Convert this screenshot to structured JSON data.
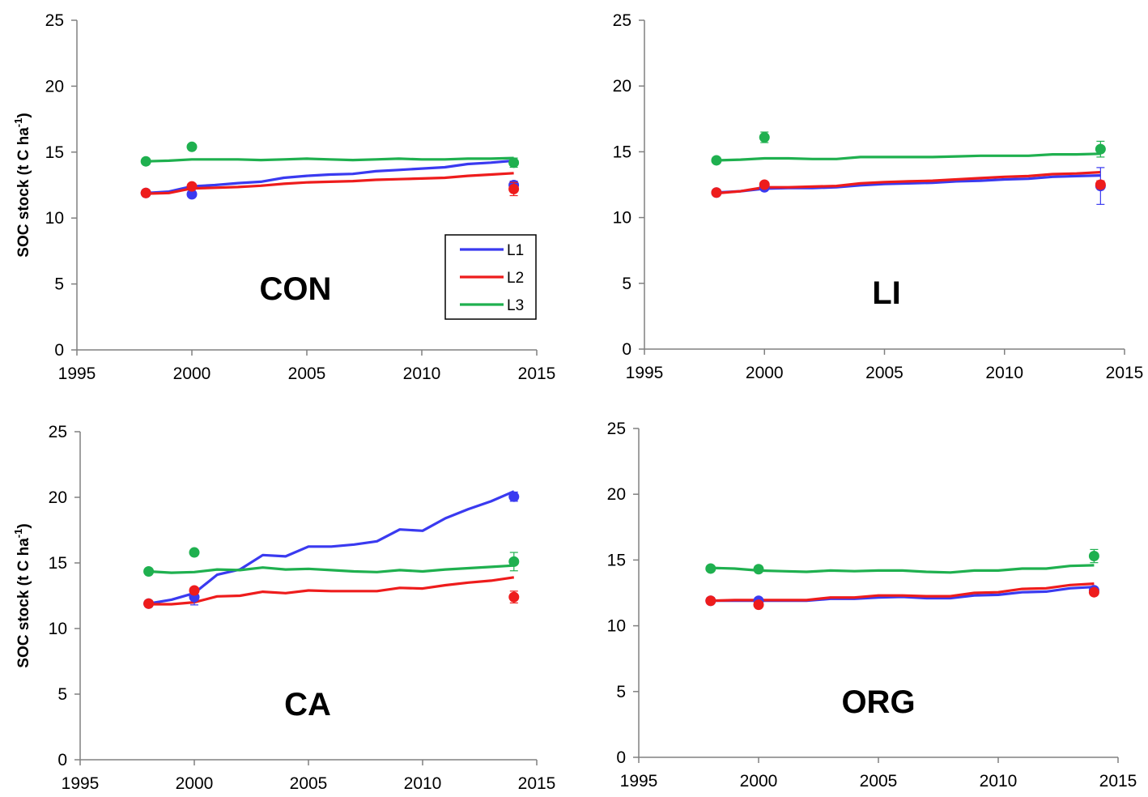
{
  "colors": {
    "L1": "#3a3af0",
    "L2": "#ee1c1c",
    "L3": "#1fb04f",
    "axis": "#808080",
    "legend_border": "#000000"
  },
  "chart_data": [
    {
      "type": "line",
      "title": "CON",
      "ylabel": "SOC stock (t C ha⁻¹)",
      "xlim": [
        1995,
        2015
      ],
      "ylim": [
        0,
        25
      ],
      "xticks": [
        1995,
        2000,
        2005,
        2010,
        2015
      ],
      "yticks": [
        0,
        5,
        10,
        15,
        20,
        25
      ],
      "legend": {
        "position": "bottom-right",
        "entries": [
          "L1",
          "L2",
          "L3"
        ]
      },
      "series": [
        {
          "name": "L1",
          "x": [
            1998,
            1999,
            2000,
            2001,
            2002,
            2003,
            2004,
            2005,
            2006,
            2007,
            2008,
            2009,
            2010,
            2011,
            2012,
            2013,
            2014
          ],
          "values": [
            11.9,
            12.0,
            12.4,
            12.5,
            12.65,
            12.75,
            13.05,
            13.2,
            13.3,
            13.35,
            13.55,
            13.65,
            13.75,
            13.85,
            14.1,
            14.2,
            14.35
          ]
        },
        {
          "name": "L2",
          "x": [
            1998,
            1999,
            2000,
            2001,
            2002,
            2003,
            2004,
            2005,
            2006,
            2007,
            2008,
            2009,
            2010,
            2011,
            2012,
            2013,
            2014
          ],
          "values": [
            11.85,
            11.9,
            12.25,
            12.3,
            12.35,
            12.45,
            12.6,
            12.7,
            12.75,
            12.8,
            12.9,
            12.95,
            13.0,
            13.05,
            13.2,
            13.3,
            13.4
          ]
        },
        {
          "name": "L3",
          "x": [
            1998,
            1999,
            2000,
            2001,
            2002,
            2003,
            2004,
            2005,
            2006,
            2007,
            2008,
            2009,
            2010,
            2011,
            2012,
            2013,
            2014
          ],
          "values": [
            14.3,
            14.35,
            14.45,
            14.45,
            14.45,
            14.4,
            14.45,
            14.5,
            14.45,
            14.4,
            14.45,
            14.5,
            14.45,
            14.45,
            14.5,
            14.5,
            14.55
          ]
        }
      ],
      "observations": [
        {
          "series": "L1",
          "x": 1998,
          "y": 11.9,
          "err": 0.2
        },
        {
          "series": "L1",
          "x": 2000,
          "y": 11.8,
          "err": 0
        },
        {
          "series": "L1",
          "x": 2014,
          "y": 12.5,
          "err": 0.3
        },
        {
          "series": "L2",
          "x": 1998,
          "y": 11.9,
          "err": 0.2
        },
        {
          "series": "L2",
          "x": 2000,
          "y": 12.4,
          "err": 0
        },
        {
          "series": "L2",
          "x": 2014,
          "y": 12.2,
          "err": 0.5
        },
        {
          "series": "L3",
          "x": 1998,
          "y": 14.3,
          "err": 0.15
        },
        {
          "series": "L3",
          "x": 2000,
          "y": 15.4,
          "err": 0
        },
        {
          "series": "L3",
          "x": 2014,
          "y": 14.2,
          "err": 0.35
        }
      ]
    },
    {
      "type": "line",
      "title": "LI",
      "ylabel": "",
      "xlim": [
        1995,
        2015
      ],
      "ylim": [
        0,
        25
      ],
      "xticks": [
        1995,
        2000,
        2005,
        2010,
        2015
      ],
      "yticks": [
        0,
        5,
        10,
        15,
        20,
        25
      ],
      "series": [
        {
          "name": "L1",
          "x": [
            1998,
            1999,
            2000,
            2001,
            2002,
            2003,
            2004,
            2005,
            2006,
            2007,
            2008,
            2009,
            2010,
            2011,
            2012,
            2013,
            2014
          ],
          "values": [
            11.9,
            12.0,
            12.2,
            12.25,
            12.25,
            12.3,
            12.45,
            12.55,
            12.6,
            12.65,
            12.75,
            12.8,
            12.9,
            12.95,
            13.1,
            13.15,
            13.2
          ]
        },
        {
          "name": "L2",
          "x": [
            1998,
            1999,
            2000,
            2001,
            2002,
            2003,
            2004,
            2005,
            2006,
            2007,
            2008,
            2009,
            2010,
            2011,
            2012,
            2013,
            2014
          ],
          "values": [
            11.85,
            12.0,
            12.3,
            12.3,
            12.35,
            12.4,
            12.6,
            12.7,
            12.75,
            12.8,
            12.9,
            13.0,
            13.1,
            13.15,
            13.3,
            13.35,
            13.45
          ]
        },
        {
          "name": "L3",
          "x": [
            1998,
            1999,
            2000,
            2001,
            2002,
            2003,
            2004,
            2005,
            2006,
            2007,
            2008,
            2009,
            2010,
            2011,
            2012,
            2013,
            2014
          ],
          "values": [
            14.35,
            14.4,
            14.5,
            14.5,
            14.45,
            14.45,
            14.6,
            14.6,
            14.6,
            14.6,
            14.65,
            14.7,
            14.7,
            14.7,
            14.8,
            14.8,
            14.85
          ]
        }
      ],
      "observations": [
        {
          "series": "L1",
          "x": 1998,
          "y": 11.9,
          "err": 0.2
        },
        {
          "series": "L1",
          "x": 2000,
          "y": 12.3,
          "err": 0
        },
        {
          "series": "L1",
          "x": 2014,
          "y": 12.4,
          "err": 1.4
        },
        {
          "series": "L2",
          "x": 1998,
          "y": 11.9,
          "err": 0.2
        },
        {
          "series": "L2",
          "x": 2000,
          "y": 12.5,
          "err": 0.2
        },
        {
          "series": "L2",
          "x": 2014,
          "y": 12.5,
          "err": 0.3
        },
        {
          "series": "L3",
          "x": 1998,
          "y": 14.35,
          "err": 0.15
        },
        {
          "series": "L3",
          "x": 2000,
          "y": 16.1,
          "err": 0.4
        },
        {
          "series": "L3",
          "x": 2014,
          "y": 15.2,
          "err": 0.6
        }
      ]
    },
    {
      "type": "line",
      "title": "CA",
      "ylabel": "SOC stock (t C ha⁻¹)",
      "xlim": [
        1995,
        2015
      ],
      "ylim": [
        0,
        25
      ],
      "xticks": [
        1995,
        2000,
        2005,
        2010,
        2015
      ],
      "yticks": [
        0,
        5,
        10,
        15,
        20,
        25
      ],
      "series": [
        {
          "name": "L1",
          "x": [
            1998,
            1999,
            2000,
            2001,
            2002,
            2003,
            2004,
            2005,
            2006,
            2007,
            2008,
            2009,
            2010,
            2011,
            2012,
            2013,
            2014
          ],
          "values": [
            11.9,
            12.2,
            12.7,
            14.1,
            14.5,
            15.6,
            15.5,
            16.25,
            16.25,
            16.4,
            16.65,
            17.55,
            17.45,
            18.4,
            19.1,
            19.7,
            20.45
          ]
        },
        {
          "name": "L2",
          "x": [
            1998,
            1999,
            2000,
            2001,
            2002,
            2003,
            2004,
            2005,
            2006,
            2007,
            2008,
            2009,
            2010,
            2011,
            2012,
            2013,
            2014
          ],
          "values": [
            11.85,
            11.85,
            12.0,
            12.45,
            12.5,
            12.8,
            12.7,
            12.9,
            12.85,
            12.85,
            12.85,
            13.1,
            13.05,
            13.3,
            13.5,
            13.65,
            13.9
          ]
        },
        {
          "name": "L3",
          "x": [
            1998,
            1999,
            2000,
            2001,
            2002,
            2003,
            2004,
            2005,
            2006,
            2007,
            2008,
            2009,
            2010,
            2011,
            2012,
            2013,
            2014
          ],
          "values": [
            14.35,
            14.25,
            14.3,
            14.5,
            14.45,
            14.65,
            14.5,
            14.55,
            14.45,
            14.35,
            14.3,
            14.45,
            14.35,
            14.5,
            14.6,
            14.7,
            14.8
          ]
        }
      ],
      "observations": [
        {
          "series": "L1",
          "x": 1998,
          "y": 11.9,
          "err": 0.2
        },
        {
          "series": "L1",
          "x": 2000,
          "y": 12.4,
          "err": 0.6
        },
        {
          "series": "L1",
          "x": 2014,
          "y": 20.05,
          "err": 0.35
        },
        {
          "series": "L2",
          "x": 1998,
          "y": 11.9,
          "err": 0.2
        },
        {
          "series": "L2",
          "x": 2000,
          "y": 12.9,
          "err": 0.2
        },
        {
          "series": "L2",
          "x": 2014,
          "y": 12.4,
          "err": 0.45
        },
        {
          "series": "L3",
          "x": 1998,
          "y": 14.35,
          "err": 0.15
        },
        {
          "series": "L3",
          "x": 2000,
          "y": 15.8,
          "err": 0.15
        },
        {
          "series": "L3",
          "x": 2014,
          "y": 15.1,
          "err": 0.7
        }
      ]
    },
    {
      "type": "line",
      "title": "ORG",
      "ylabel": "",
      "xlim": [
        1995,
        2015
      ],
      "ylim": [
        0,
        25
      ],
      "xticks": [
        1995,
        2000,
        2005,
        2010,
        2015
      ],
      "yticks": [
        0,
        5,
        10,
        15,
        20,
        25
      ],
      "series": [
        {
          "name": "L1",
          "x": [
            1998,
            1999,
            2000,
            2001,
            2002,
            2003,
            2004,
            2005,
            2006,
            2007,
            2008,
            2009,
            2010,
            2011,
            2012,
            2013,
            2014
          ],
          "values": [
            11.9,
            11.9,
            11.9,
            11.9,
            11.9,
            12.05,
            12.05,
            12.15,
            12.2,
            12.1,
            12.1,
            12.3,
            12.35,
            12.55,
            12.6,
            12.85,
            12.95
          ]
        },
        {
          "name": "L2",
          "x": [
            1998,
            1999,
            2000,
            2001,
            2002,
            2003,
            2004,
            2005,
            2006,
            2007,
            2008,
            2009,
            2010,
            2011,
            2012,
            2013,
            2014
          ],
          "values": [
            11.9,
            11.95,
            11.95,
            11.95,
            11.95,
            12.15,
            12.15,
            12.3,
            12.3,
            12.25,
            12.25,
            12.5,
            12.55,
            12.8,
            12.85,
            13.1,
            13.2
          ]
        },
        {
          "name": "L3",
          "x": [
            1998,
            1999,
            2000,
            2001,
            2002,
            2003,
            2004,
            2005,
            2006,
            2007,
            2008,
            2009,
            2010,
            2011,
            2012,
            2013,
            2014
          ],
          "values": [
            14.4,
            14.35,
            14.2,
            14.15,
            14.1,
            14.2,
            14.15,
            14.2,
            14.2,
            14.1,
            14.05,
            14.2,
            14.2,
            14.35,
            14.35,
            14.55,
            14.6
          ]
        }
      ],
      "observations": [
        {
          "series": "L1",
          "x": 1998,
          "y": 11.9,
          "err": 0.2
        },
        {
          "series": "L1",
          "x": 2000,
          "y": 11.9,
          "err": 0
        },
        {
          "series": "L1",
          "x": 2014,
          "y": 12.7,
          "err": 0
        },
        {
          "series": "L2",
          "x": 1998,
          "y": 11.9,
          "err": 0.2
        },
        {
          "series": "L2",
          "x": 2000,
          "y": 11.6,
          "err": 0
        },
        {
          "series": "L2",
          "x": 2014,
          "y": 12.55,
          "err": 0.15
        },
        {
          "series": "L3",
          "x": 1998,
          "y": 14.35,
          "err": 0.15
        },
        {
          "series": "L3",
          "x": 2000,
          "y": 14.3,
          "err": 0.1
        },
        {
          "series": "L3",
          "x": 2014,
          "y": 15.3,
          "err": 0.5
        }
      ]
    }
  ]
}
